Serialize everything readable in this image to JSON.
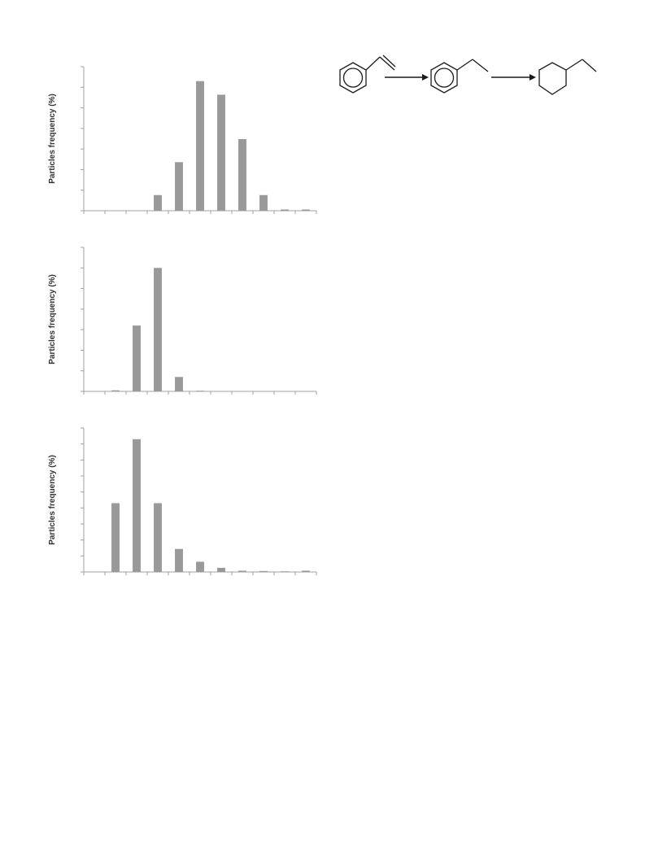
{
  "colors": {
    "bar": "#999999",
    "axis": "#a0a0a0",
    "ink": "#1a1a1a"
  },
  "chart_data": [
    {
      "type": "bar",
      "ylabel": "Particles frequency (%)",
      "xlabel": "",
      "category_count": 11,
      "ylim": [
        0,
        35
      ],
      "y_tick_step": 5,
      "values": [
        0,
        0,
        0,
        3.8,
        11.8,
        31.5,
        28.2,
        17.4,
        3.8,
        0.3,
        0.3
      ]
    },
    {
      "type": "bar",
      "ylabel": "Particles frequency (%)",
      "xlabel": "",
      "category_count": 11,
      "ylim": [
        0,
        70
      ],
      "y_tick_step": 10,
      "values": [
        0,
        0.5,
        32.0,
        60.0,
        7.0,
        0.3,
        0,
        0,
        0,
        0,
        0
      ]
    },
    {
      "type": "bar",
      "ylabel": "Particles frequency (%)",
      "xlabel": "",
      "category_count": 11,
      "ylim": [
        0,
        45
      ],
      "y_tick_step": 5,
      "values": [
        0,
        21.5,
        41.5,
        21.5,
        7.2,
        3.2,
        1.3,
        0.4,
        0.3,
        0.2,
        0.4
      ]
    }
  ],
  "scheme": {
    "molecules": [
      "styrene-icon",
      "ethylbenzene-icon",
      "ethylcyclohexane-icon"
    ],
    "arrows": [
      "reaction-arrow",
      "reaction-arrow"
    ]
  }
}
